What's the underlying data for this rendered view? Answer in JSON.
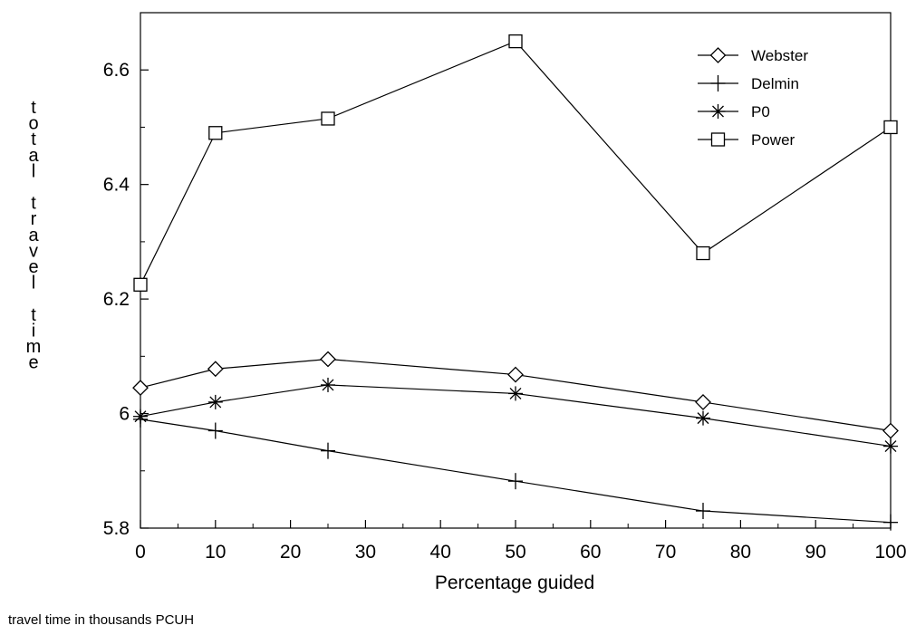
{
  "chart_data": {
    "type": "line",
    "x": [
      0,
      10,
      25,
      50,
      75,
      100
    ],
    "xlabel": "Percentage guided",
    "ylabel": "total travel time",
    "xlim": [
      0,
      100
    ],
    "ylim": [
      5.8,
      6.7
    ],
    "xticks": [
      "0",
      "10",
      "20",
      "30",
      "40",
      "50",
      "60",
      "70",
      "80",
      "90",
      "100"
    ],
    "yticks": [
      "5.8",
      "6",
      "6.2",
      "6.4",
      "6.6"
    ],
    "grid": false,
    "legend_position": "top-right",
    "series": [
      {
        "name": "Webster",
        "marker": "diamond",
        "values": [
          6.045,
          6.078,
          6.095,
          6.068,
          6.02,
          5.97
        ]
      },
      {
        "name": "Delmin",
        "marker": "plus",
        "values": [
          5.99,
          5.97,
          5.935,
          5.882,
          5.83,
          5.81
        ]
      },
      {
        "name": "P0",
        "marker": "asterisk",
        "values": [
          5.995,
          6.02,
          6.05,
          6.035,
          5.992,
          5.943
        ]
      },
      {
        "name": "Power",
        "marker": "square",
        "values": [
          6.225,
          6.49,
          6.515,
          6.65,
          6.28,
          6.5
        ]
      }
    ]
  },
  "footnote": "travel time in thousands PCUH"
}
